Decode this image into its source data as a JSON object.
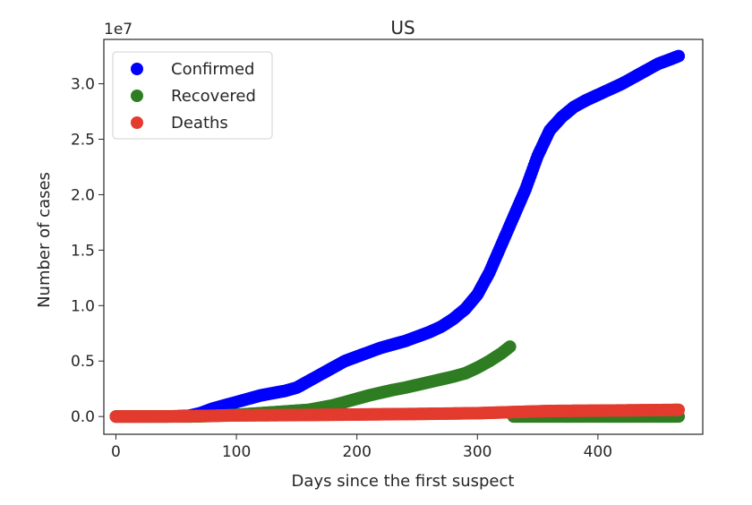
{
  "chart_data": {
    "type": "scatter",
    "title": "US",
    "xlabel": "Days since the first suspect",
    "ylabel": "Number of cases",
    "y_offset_label": "1e7",
    "xlim": [
      -10,
      487
    ],
    "ylim": [
      -1600000,
      34000000
    ],
    "x_ticks": [
      0,
      100,
      200,
      300,
      400
    ],
    "x_tick_labels": [
      "0",
      "100",
      "200",
      "300",
      "400"
    ],
    "y_ticks": [
      0,
      5000000,
      10000000,
      15000000,
      20000000,
      25000000,
      30000000
    ],
    "y_tick_labels": [
      "0.0",
      "0.5",
      "1.0",
      "1.5",
      "2.0",
      "2.5",
      "3.0"
    ],
    "grid": false,
    "legend_position": "top-left",
    "series": [
      {
        "name": "Confirmed",
        "color": "#0000ff",
        "points": [
          [
            0,
            0
          ],
          [
            40,
            0
          ],
          [
            60,
            50000
          ],
          [
            70,
            300000
          ],
          [
            80,
            700000
          ],
          [
            90,
            1000000
          ],
          [
            100,
            1300000
          ],
          [
            110,
            1600000
          ],
          [
            120,
            1900000
          ],
          [
            130,
            2100000
          ],
          [
            140,
            2300000
          ],
          [
            150,
            2600000
          ],
          [
            160,
            3200000
          ],
          [
            170,
            3800000
          ],
          [
            180,
            4400000
          ],
          [
            190,
            5000000
          ],
          [
            200,
            5400000
          ],
          [
            210,
            5800000
          ],
          [
            220,
            6200000
          ],
          [
            230,
            6500000
          ],
          [
            240,
            6800000
          ],
          [
            250,
            7200000
          ],
          [
            260,
            7600000
          ],
          [
            270,
            8100000
          ],
          [
            280,
            8800000
          ],
          [
            290,
            9700000
          ],
          [
            300,
            11000000
          ],
          [
            310,
            13000000
          ],
          [
            320,
            15500000
          ],
          [
            330,
            18000000
          ],
          [
            340,
            20500000
          ],
          [
            350,
            23500000
          ],
          [
            360,
            25800000
          ],
          [
            370,
            27000000
          ],
          [
            380,
            27900000
          ],
          [
            390,
            28500000
          ],
          [
            400,
            29000000
          ],
          [
            410,
            29500000
          ],
          [
            420,
            30000000
          ],
          [
            430,
            30600000
          ],
          [
            440,
            31200000
          ],
          [
            450,
            31800000
          ],
          [
            460,
            32200000
          ],
          [
            467,
            32500000
          ]
        ]
      },
      {
        "name": "Recovered",
        "color": "#2e7d22",
        "points": [
          [
            0,
            0
          ],
          [
            60,
            0
          ],
          [
            80,
            50000
          ],
          [
            100,
            150000
          ],
          [
            120,
            300000
          ],
          [
            140,
            450000
          ],
          [
            160,
            600000
          ],
          [
            170,
            800000
          ],
          [
            180,
            1000000
          ],
          [
            190,
            1300000
          ],
          [
            200,
            1600000
          ],
          [
            210,
            1900000
          ],
          [
            220,
            2150000
          ],
          [
            230,
            2400000
          ],
          [
            240,
            2600000
          ],
          [
            250,
            2850000
          ],
          [
            260,
            3100000
          ],
          [
            270,
            3350000
          ],
          [
            280,
            3600000
          ],
          [
            290,
            3900000
          ],
          [
            300,
            4400000
          ],
          [
            310,
            5000000
          ],
          [
            320,
            5700000
          ],
          [
            327,
            6300000
          ],
          [
            330,
            0
          ],
          [
            360,
            0
          ],
          [
            400,
            0
          ],
          [
            440,
            0
          ],
          [
            467,
            0
          ]
        ]
      },
      {
        "name": "Deaths",
        "color": "#e33b2e",
        "points": [
          [
            0,
            0
          ],
          [
            50,
            10000
          ],
          [
            100,
            100000
          ],
          [
            150,
            130000
          ],
          [
            200,
            180000
          ],
          [
            250,
            230000
          ],
          [
            300,
            300000
          ],
          [
            330,
            400000
          ],
          [
            360,
            500000
          ],
          [
            400,
            530000
          ],
          [
            440,
            570000
          ],
          [
            467,
            600000
          ]
        ]
      }
    ]
  }
}
